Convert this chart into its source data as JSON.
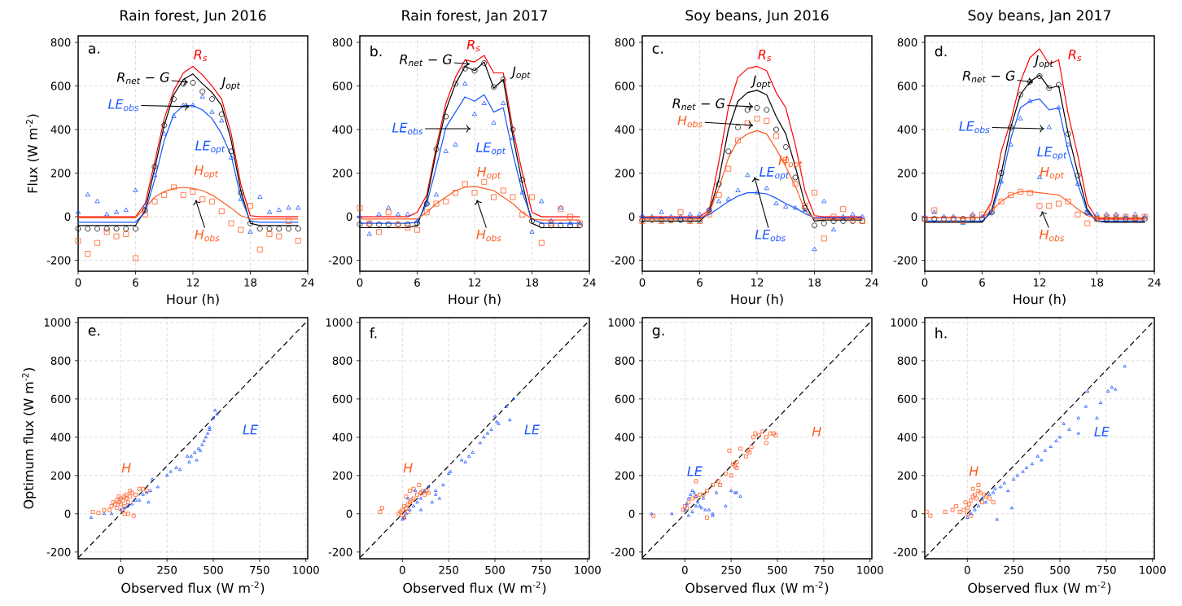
{
  "chart_data": [
    {
      "type": "line",
      "title": "Rain forest, Jun 2016",
      "xlabel": "Hour (h)",
      "ylabel": "Flux (W m$^{-2}$)",
      "xlim": [
        0,
        24
      ],
      "ylim": [
        -250,
        830
      ],
      "xticks": [
        0,
        6,
        12,
        18,
        24
      ],
      "yticks": [
        -200,
        0,
        200,
        400,
        600,
        800
      ],
      "grid": true,
      "x": [
        0,
        1,
        2,
        3,
        4,
        5,
        6,
        7,
        8,
        9,
        10,
        11,
        12,
        13,
        14,
        15,
        16,
        17,
        18,
        19,
        20,
        21,
        22,
        23
      ],
      "series": [
        {
          "type": "line",
          "color": "#ff0000",
          "marker": "none",
          "line_style": "solid",
          "values": [
            0,
            0,
            0,
            0,
            0,
            0,
            0,
            60,
            250,
            450,
            580,
            660,
            690,
            650,
            600,
            540,
            380,
            150,
            5,
            0,
            0,
            0,
            0,
            0
          ]
        },
        {
          "type": "line",
          "color": "#000000",
          "marker": "none",
          "line_style": "solid",
          "values": [
            -40,
            -40,
            -40,
            -40,
            -40,
            -40,
            -40,
            30,
            220,
            420,
            560,
            630,
            655,
            610,
            570,
            510,
            350,
            120,
            -30,
            -40,
            -40,
            -40,
            -40,
            -40
          ]
        },
        {
          "type": "scatter",
          "color": "#000000",
          "marker": "circle",
          "values": [
            -55,
            -55,
            -55,
            -55,
            -55,
            -55,
            -55,
            30,
            230,
            420,
            540,
            610,
            615,
            575,
            540,
            470,
            300,
            110,
            -30,
            -55,
            -55,
            -55,
            -55,
            -55
          ]
        },
        {
          "type": "line",
          "color": "#1a55ff",
          "marker": "none",
          "line_style": "solid",
          "values": [
            -25,
            -25,
            -25,
            -25,
            -25,
            -25,
            -25,
            20,
            170,
            350,
            470,
            510,
            510,
            490,
            450,
            380,
            280,
            90,
            -20,
            -25,
            -25,
            -25,
            -25,
            -25
          ]
        },
        {
          "type": "scatter",
          "color": "#1a55ff",
          "marker": "triangle",
          "values": [
            20,
            100,
            70,
            10,
            20,
            30,
            120,
            50,
            190,
            380,
            460,
            510,
            510,
            550,
            480,
            440,
            270,
            80,
            -70,
            90,
            20,
            30,
            40,
            40
          ]
        },
        {
          "type": "line",
          "color": "#ff5b1f",
          "marker": "none",
          "line_style": "solid",
          "values": [
            -5,
            -5,
            -5,
            -5,
            -5,
            -5,
            -5,
            40,
            90,
            115,
            130,
            135,
            130,
            120,
            100,
            70,
            40,
            5,
            -10,
            -10,
            -10,
            -10,
            -10,
            -10
          ]
        },
        {
          "type": "scatter",
          "color": "#ff5b1f",
          "marker": "square",
          "values": [
            -110,
            -170,
            -120,
            -70,
            -90,
            -80,
            -190,
            10,
            70,
            100,
            135,
            100,
            115,
            80,
            70,
            25,
            -30,
            -60,
            50,
            -150,
            -80,
            -90,
            -20,
            -110
          ]
        }
      ],
      "annotations": [
        "a.",
        "R$_{s}$",
        "R$_{net}$ − G",
        "J$_{opt}$",
        "LE$_{obs}$",
        "LE$_{opt}$",
        "H$_{opt}$",
        "H$_{obs}$"
      ]
    },
    {
      "type": "line",
      "title": "Rain forest, Jan 2017",
      "xlabel": "Hour (h)",
      "xlim": [
        0,
        24
      ],
      "ylim": [
        -250,
        830
      ],
      "xticks": [
        0,
        6,
        12,
        18,
        24
      ],
      "yticks": [
        -200,
        0,
        200,
        400,
        600,
        800
      ],
      "grid": true,
      "x": [
        0,
        1,
        2,
        3,
        4,
        5,
        6,
        7,
        8,
        9,
        10,
        11,
        12,
        13,
        14,
        15,
        16,
        17,
        18,
        19,
        20,
        21,
        22,
        23
      ],
      "series": [
        {
          "type": "line",
          "color": "#ff0000",
          "marker": "none",
          "line_style": "solid",
          "values": [
            0,
            0,
            0,
            0,
            0,
            0,
            20,
            100,
            320,
            520,
            640,
            720,
            710,
            740,
            660,
            660,
            400,
            200,
            20,
            0,
            0,
            0,
            0,
            0
          ]
        },
        {
          "type": "line",
          "color": "#000000",
          "marker": "none",
          "line_style": "solid",
          "values": [
            -50,
            -50,
            -50,
            -50,
            -50,
            -50,
            -40,
            80,
            300,
            490,
            610,
            690,
            670,
            710,
            590,
            630,
            370,
            150,
            -30,
            -50,
            -50,
            -50,
            -50,
            -50
          ]
        },
        {
          "type": "scatter",
          "color": "#000000",
          "marker": "circle",
          "values": [
            -35,
            -35,
            -35,
            -35,
            -35,
            -35,
            -30,
            60,
            310,
            460,
            610,
            680,
            670,
            705,
            595,
            630,
            400,
            170,
            -20,
            -40,
            -40,
            -40,
            -40,
            -40
          ]
        },
        {
          "type": "line",
          "color": "#1a55ff",
          "marker": "none",
          "line_style": "solid",
          "values": [
            -30,
            -30,
            -30,
            -30,
            -30,
            -30,
            -25,
            60,
            230,
            410,
            480,
            550,
            530,
            560,
            480,
            500,
            290,
            110,
            -10,
            -30,
            -30,
            -30,
            -30,
            -30
          ]
        },
        {
          "type": "scatter",
          "color": "#1a55ff",
          "marker": "triangle",
          "values": [
            0,
            -80,
            10,
            40,
            10,
            10,
            -20,
            60,
            100,
            300,
            330,
            610,
            470,
            520,
            430,
            520,
            360,
            110,
            -70,
            70,
            -20,
            40,
            -30,
            -30
          ]
        },
        {
          "type": "line",
          "color": "#ff5b1f",
          "marker": "none",
          "line_style": "solid",
          "values": [
            -10,
            -10,
            -10,
            -10,
            -10,
            -10,
            -10,
            20,
            60,
            90,
            120,
            135,
            140,
            130,
            120,
            90,
            60,
            20,
            -10,
            -15,
            -15,
            -15,
            -15,
            -15
          ]
        },
        {
          "type": "scatter",
          "color": "#ff5b1f",
          "marker": "square",
          "values": [
            40,
            -30,
            -70,
            20,
            -40,
            -50,
            -60,
            20,
            60,
            70,
            110,
            150,
            110,
            160,
            90,
            120,
            90,
            10,
            90,
            -120,
            -30,
            35,
            0,
            -30
          ]
        }
      ],
      "annotations": [
        "b.",
        "R$_{s}$",
        "R$_{net}$ − G",
        "J$_{opt}$",
        "LE$_{obs}$",
        "LE$_{opt}$",
        "H$_{opt}$",
        "H$_{obs}$"
      ]
    },
    {
      "type": "line",
      "title": "Soy beans, Jun 2016",
      "xlabel": "Hour (h)",
      "xlim": [
        0,
        24
      ],
      "ylim": [
        -250,
        830
      ],
      "xticks": [
        0,
        6,
        12,
        18,
        24
      ],
      "yticks": [
        -200,
        0,
        200,
        400,
        600,
        800
      ],
      "grid": true,
      "x": [
        0,
        1,
        2,
        3,
        4,
        5,
        6,
        7,
        8,
        9,
        10,
        11,
        12,
        13,
        14,
        15,
        16,
        17,
        18,
        19,
        20,
        21,
        22,
        23
      ],
      "series": [
        {
          "type": "line",
          "color": "#ff0000",
          "marker": "none",
          "line_style": "solid",
          "values": [
            0,
            0,
            0,
            0,
            0,
            0,
            0,
            30,
            250,
            500,
            640,
            680,
            690,
            670,
            570,
            500,
            330,
            120,
            5,
            0,
            0,
            0,
            0,
            0
          ]
        },
        {
          "type": "line",
          "color": "#000000",
          "marker": "none",
          "line_style": "solid",
          "values": [
            -20,
            -20,
            -20,
            -20,
            -20,
            -20,
            -20,
            20,
            170,
            400,
            530,
            570,
            580,
            560,
            460,
            380,
            230,
            60,
            -20,
            -15,
            -15,
            -15,
            -15,
            -15
          ]
        },
        {
          "type": "scatter",
          "color": "#000000",
          "marker": "circle",
          "values": [
            -15,
            -15,
            -15,
            -15,
            -15,
            -15,
            -15,
            30,
            150,
            300,
            410,
            490,
            500,
            490,
            400,
            320,
            180,
            40,
            -40,
            -30,
            -20,
            -20,
            -20,
            -20
          ]
        },
        {
          "type": "line",
          "color": "#1a55ff",
          "marker": "none",
          "line_style": "solid",
          "values": [
            -5,
            -5,
            -5,
            -5,
            -5,
            -5,
            -5,
            10,
            40,
            70,
            95,
            110,
            110,
            105,
            85,
            60,
            40,
            15,
            -5,
            -5,
            -5,
            -5,
            -5,
            -5
          ]
        },
        {
          "type": "scatter",
          "color": "#1a55ff",
          "marker": "triangle",
          "values": [
            5,
            0,
            20,
            0,
            0,
            10,
            10,
            30,
            70,
            80,
            120,
            190,
            110,
            130,
            60,
            45,
            40,
            30,
            -150,
            70,
            -60,
            0,
            10,
            0
          ]
        },
        {
          "type": "line",
          "color": "#ff5b1f",
          "marker": "none",
          "line_style": "solid",
          "values": [
            -10,
            -10,
            -10,
            -10,
            -10,
            -10,
            -10,
            20,
            130,
            270,
            350,
            380,
            395,
            380,
            310,
            230,
            140,
            30,
            -10,
            -10,
            -10,
            -10,
            -10,
            -10
          ]
        },
        {
          "type": "scatter",
          "color": "#ff5b1f",
          "marker": "square",
          "values": [
            -20,
            -10,
            -20,
            -15,
            20,
            -20,
            -20,
            10,
            100,
            220,
            350,
            430,
            450,
            440,
            370,
            260,
            150,
            50,
            110,
            -100,
            0,
            35,
            -15,
            -20
          ]
        }
      ],
      "annotations": [
        "c.",
        "R$_{s}$",
        "R$_{net}$ − G",
        "J$_{opt}$",
        "LE$_{obs}$",
        "LE$_{opt}$",
        "H$_{opt}$",
        "H$_{obs}$"
      ]
    },
    {
      "type": "line",
      "title": "Soy beans, Jan 2017",
      "xlabel": "Hour (h)",
      "xlim": [
        0,
        24
      ],
      "ylim": [
        -250,
        830
      ],
      "xticks": [
        0,
        6,
        12,
        18,
        24
      ],
      "yticks": [
        -200,
        0,
        200,
        400,
        600,
        800
      ],
      "grid": true,
      "x": [
        0,
        1,
        2,
        3,
        4,
        5,
        6,
        7,
        8,
        9,
        10,
        11,
        12,
        13,
        14,
        15,
        16,
        17,
        18,
        19,
        20,
        21,
        22,
        23
      ],
      "series": [
        {
          "type": "line",
          "color": "#ff0000",
          "marker": "none",
          "line_style": "solid",
          "values": [
            -5,
            -5,
            -5,
            -5,
            -5,
            -5,
            -5,
            70,
            300,
            440,
            620,
            730,
            770,
            700,
            720,
            470,
            280,
            60,
            -10,
            -10,
            -10,
            -10,
            -10,
            -10
          ]
        },
        {
          "type": "line",
          "color": "#000000",
          "marker": "none",
          "line_style": "solid",
          "values": [
            -25,
            -25,
            -25,
            -25,
            -25,
            -25,
            -25,
            30,
            200,
            410,
            560,
            620,
            650,
            590,
            600,
            380,
            200,
            30,
            -20,
            -25,
            -25,
            -25,
            -25,
            -25
          ]
        },
        {
          "type": "scatter",
          "color": "#000000",
          "marker": "circle",
          "values": [
            -10,
            -10,
            -10,
            -10,
            -10,
            -10,
            -10,
            20,
            200,
            410,
            560,
            620,
            645,
            590,
            605,
            380,
            190,
            20,
            -10,
            -10,
            -10,
            -10,
            -10,
            -10
          ]
        },
        {
          "type": "line",
          "color": "#1a55ff",
          "marker": "none",
          "line_style": "solid",
          "values": [
            -20,
            -20,
            -20,
            -20,
            -20,
            -20,
            -20,
            20,
            160,
            360,
            500,
            530,
            540,
            490,
            500,
            300,
            150,
            20,
            -20,
            -20,
            -20,
            -20,
            -20,
            -20
          ]
        },
        {
          "type": "scatter",
          "color": "#1a55ff",
          "marker": "triangle",
          "values": [
            0,
            20,
            0,
            0,
            -30,
            10,
            0,
            20,
            160,
            330,
            450,
            530,
            180,
            410,
            500,
            330,
            150,
            20,
            10,
            10,
            10,
            0,
            10,
            0
          ]
        },
        {
          "type": "line",
          "color": "#ff5b1f",
          "marker": "none",
          "line_style": "solid",
          "values": [
            -5,
            -5,
            -5,
            -5,
            -5,
            -5,
            -5,
            30,
            70,
            100,
            115,
            115,
            110,
            105,
            100,
            70,
            35,
            5,
            -5,
            -5,
            -5,
            -5,
            -5,
            -5
          ]
        },
        {
          "type": "scatter",
          "color": "#ff5b1f",
          "marker": "square",
          "values": [
            -10,
            30,
            -10,
            -10,
            -20,
            0,
            10,
            40,
            70,
            100,
            115,
            110,
            50,
            50,
            60,
            70,
            10,
            -30,
            -10,
            0,
            0,
            0,
            -5,
            0
          ]
        }
      ],
      "annotations": [
        "d.",
        "R$_{s}$",
        "R$_{net}$ − G",
        "J$_{opt}$",
        "LE$_{obs}$",
        "LE$_{opt}$",
        "H$_{opt}$",
        "H$_{obs}$"
      ]
    },
    {
      "type": "scatter",
      "xlabel": "Observed flux (W m$^{-2}$)",
      "ylabel": "Optimum flux (W m$^{-2}$)",
      "xlim": [
        -230,
        1010
      ],
      "ylim": [
        -235,
        1025
      ],
      "xticks": [
        0,
        250,
        500,
        750,
        1000
      ],
      "yticks": [
        -200,
        0,
        200,
        400,
        600,
        800,
        1000
      ],
      "grid": true,
      "series": [
        {
          "type": "line",
          "color": "#000000",
          "marker": "none",
          "line_style": "dashed",
          "x": [
            -230,
            1010
          ],
          "values": [
            -230,
            1010
          ]
        },
        {
          "type": "scatter",
          "color": "#ff5b1f",
          "marker": "square",
          "x": [
            -150,
            -120,
            -90,
            -60,
            -50,
            -40,
            -30,
            -20,
            -10,
            0,
            10,
            20,
            30,
            40,
            0,
            -20,
            10,
            20,
            30,
            50,
            60,
            80,
            100,
            120,
            140,
            20,
            40,
            70,
            -10,
            50,
            0
          ],
          "values": [
            10,
            5,
            20,
            20,
            40,
            60,
            50,
            70,
            60,
            80,
            70,
            90,
            80,
            60,
            null,
            30,
            20,
            40,
            100,
            90,
            110,
            100,
            130,
            130,
            120,
            0,
            0,
            -10,
            90,
            120,
            50
          ]
        },
        {
          "type": "scatter",
          "color": "#1a55ff",
          "marker": "triangle",
          "x": [
            -160,
            -90,
            -50,
            0,
            20,
            40,
            60,
            80,
            100,
            120,
            140,
            150,
            170,
            160,
            200,
            250,
            270,
            300,
            320,
            370,
            380,
            400,
            410,
            420,
            440,
            450,
            460,
            470,
            480,
            500,
            520,
            510,
            480,
            430,
            360
          ],
          "values": [
            -20,
            0,
            0,
            20,
            30,
            40,
            50,
            70,
            70,
            100,
            110,
            60,
            180,
            120,
            140,
            200,
            220,
            240,
            230,
            270,
            300,
            320,
            280,
            340,
            360,
            380,
            400,
            420,
            450,
            500,
            520,
            540,
            440,
            330,
            300
          ]
        }
      ],
      "annotations": [
        "e.",
        "H",
        "LE"
      ]
    },
    {
      "type": "scatter",
      "xlabel": "Observed flux (W m$^{-2}$)",
      "xlim": [
        -230,
        1010
      ],
      "ylim": [
        -235,
        1025
      ],
      "xticks": [
        0,
        250,
        500,
        750,
        1000
      ],
      "yticks": [
        -200,
        0,
        200,
        400,
        600,
        800,
        1000
      ],
      "grid": true,
      "series": [
        {
          "type": "line",
          "color": "#000000",
          "marker": "none",
          "line_style": "dashed",
          "x": [
            -230,
            1010
          ],
          "values": [
            -230,
            1010
          ]
        },
        {
          "type": "scatter",
          "color": "#ff5b1f",
          "marker": "square",
          "x": [
            -120,
            -110,
            -20,
            0,
            10,
            20,
            30,
            40,
            50,
            60,
            80,
            100,
            110,
            120,
            130,
            -10,
            0,
            20,
            40,
            60,
            90,
            10,
            30,
            140
          ],
          "values": [
            10,
            30,
            0,
            20,
            40,
            30,
            50,
            60,
            70,
            80,
            100,
            110,
            120,
            100,
            120,
            10,
            -10,
            90,
            120,
            130,
            150,
            -20,
            10,
            110
          ]
        },
        {
          "type": "scatter",
          "color": "#1a55ff",
          "marker": "triangle",
          "x": [
            0,
            10,
            20,
            40,
            60,
            80,
            100,
            120,
            140,
            160,
            180,
            180,
            200,
            220,
            250,
            260,
            320,
            340,
            360,
            380,
            420,
            440,
            460,
            480,
            500,
            510,
            520,
            560,
            580,
            600,
            30,
            70,
            100
          ],
          "values": [
            -30,
            -20,
            0,
            20,
            40,
            60,
            80,
            120,
            140,
            60,
            120,
            100,
            80,
            150,
            210,
            220,
            280,
            270,
            300,
            320,
            370,
            400,
            420,
            440,
            510,
            480,
            470,
            560,
            490,
            600,
            80,
            120,
            20
          ]
        }
      ],
      "annotations": [
        "f.",
        "H",
        "LE"
      ]
    },
    {
      "type": "scatter",
      "xlabel": "Observed flux (W m$^{-2}$)",
      "xlim": [
        -230,
        1010
      ],
      "ylim": [
        -235,
        1025
      ],
      "xticks": [
        0,
        250,
        500,
        750,
        1000
      ],
      "yticks": [
        -200,
        0,
        200,
        400,
        600,
        800,
        1000
      ],
      "grid": true,
      "series": [
        {
          "type": "line",
          "color": "#000000",
          "marker": "none",
          "line_style": "dashed",
          "x": [
            -230,
            1010
          ],
          "values": [
            -230,
            1010
          ]
        },
        {
          "type": "scatter",
          "color": "#ff5b1f",
          "marker": "square",
          "x": [
            -170,
            -10,
            0,
            10,
            20,
            40,
            60,
            80,
            100,
            120,
            150,
            180,
            220,
            250,
            260,
            270,
            280,
            300,
            330,
            340,
            350,
            360,
            370,
            380,
            400,
            420,
            440,
            460,
            480,
            490,
            440,
            280,
            120,
            190,
            60,
            240
          ],
          "values": [
            -10,
            20,
            40,
            30,
            60,
            80,
            90,
            100,
            100,
            120,
            150,
            170,
            210,
            200,
            260,
            250,
            270,
            340,
            300,
            330,
            320,
            350,
            400,
            420,
            410,
            430,
            400,
            420,
            420,
            410,
            370,
            240,
            -20,
            150,
            170,
            330
          ]
        },
        {
          "type": "scatter",
          "color": "#1a55ff",
          "marker": "triangle",
          "x": [
            -180,
            -70,
            0,
            10,
            20,
            30,
            40,
            50,
            60,
            70,
            80,
            90,
            100,
            110,
            130,
            150,
            170,
            220,
            250,
            270,
            280,
            300,
            20,
            40,
            60,
            150
          ],
          "values": [
            0,
            0,
            20,
            50,
            80,
            100,
            120,
            110,
            90,
            60,
            40,
            30,
            80,
            20,
            20,
            0,
            110,
            40,
            120,
            110,
            110,
            90,
            -10,
            10,
            40,
            -10
          ]
        }
      ],
      "annotations": [
        "g.",
        "H",
        "LE"
      ]
    },
    {
      "type": "scatter",
      "xlabel": "Observed flux (W m$^{-2}$)",
      "xlim": [
        -230,
        1010
      ],
      "ylim": [
        -235,
        1025
      ],
      "xticks": [
        0,
        250,
        500,
        750,
        1000
      ],
      "yticks": [
        -200,
        0,
        200,
        400,
        600,
        800,
        1000
      ],
      "grid": true,
      "series": [
        {
          "type": "line",
          "color": "#000000",
          "marker": "none",
          "line_style": "dashed",
          "x": [
            -230,
            1010
          ],
          "values": [
            -230,
            1010
          ]
        },
        {
          "type": "scatter",
          "color": "#ff5b1f",
          "marker": "square",
          "x": [
            -220,
            -200,
            -120,
            -80,
            -60,
            -40,
            -20,
            0,
            10,
            20,
            30,
            40,
            50,
            60,
            70,
            80,
            90,
            100,
            120,
            140,
            60,
            30,
            0,
            20,
            -10
          ],
          "values": [
            10,
            -10,
            10,
            20,
            40,
            10,
            20,
            30,
            50,
            70,
            90,
            100,
            80,
            120,
            110,
            60,
            100,
            90,
            80,
            60,
            150,
            130,
            0,
            -10,
            60
          ]
        },
        {
          "type": "scatter",
          "color": "#1a55ff",
          "marker": "triangle",
          "x": [
            0,
            20,
            40,
            60,
            80,
            100,
            120,
            140,
            150,
            160,
            180,
            200,
            220,
            240,
            250,
            270,
            300,
            320,
            350,
            380,
            400,
            420,
            450,
            480,
            500,
            520,
            550,
            600,
            600,
            640,
            650,
            700,
            720,
            760,
            780,
            800,
            850
          ],
          "values": [
            -20,
            0,
            20,
            40,
            80,
            60,
            100,
            110,
            130,
            -30,
            140,
            160,
            120,
            30,
            180,
            200,
            220,
            240,
            260,
            300,
            280,
            330,
            350,
            380,
            400,
            470,
            440,
            420,
            500,
            560,
            640,
            500,
            580,
            640,
            660,
            650,
            770
          ]
        }
      ],
      "annotations": [
        "h.",
        "H",
        "LE"
      ]
    }
  ]
}
